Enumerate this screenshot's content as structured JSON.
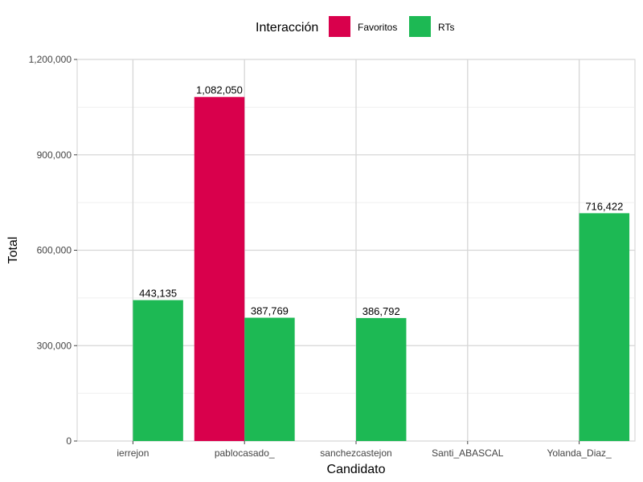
{
  "chart_data": {
    "type": "bar",
    "categories": [
      "ierrejon",
      "pablocasado_",
      "sanchezcastejon",
      "Santi_ABASCAL",
      "Yolanda_Diaz_"
    ],
    "series": [
      {
        "name": "Favoritos",
        "color": "#D9004C",
        "values": [
          null,
          1082050,
          null,
          null,
          null
        ]
      },
      {
        "name": "RTs",
        "color": "#1DB954",
        "values": [
          443135,
          387769,
          386792,
          null,
          716422
        ]
      }
    ],
    "data_labels": [
      [
        "",
        "1,082,050",
        "",
        "",
        ""
      ],
      [
        "443,135",
        "387,769",
        "386,792",
        "",
        "716,422"
      ]
    ],
    "xlabel": "Candidato",
    "ylabel": "Total",
    "ylim": [
      0,
      1200000
    ],
    "yticks": [
      0,
      300000,
      600000,
      900000,
      1200000
    ],
    "ytick_labels": [
      "0",
      "300,000",
      "600,000",
      "900,000",
      "1,200,000"
    ],
    "legend": {
      "title": "Interacción",
      "position": "top"
    },
    "grid": true
  }
}
